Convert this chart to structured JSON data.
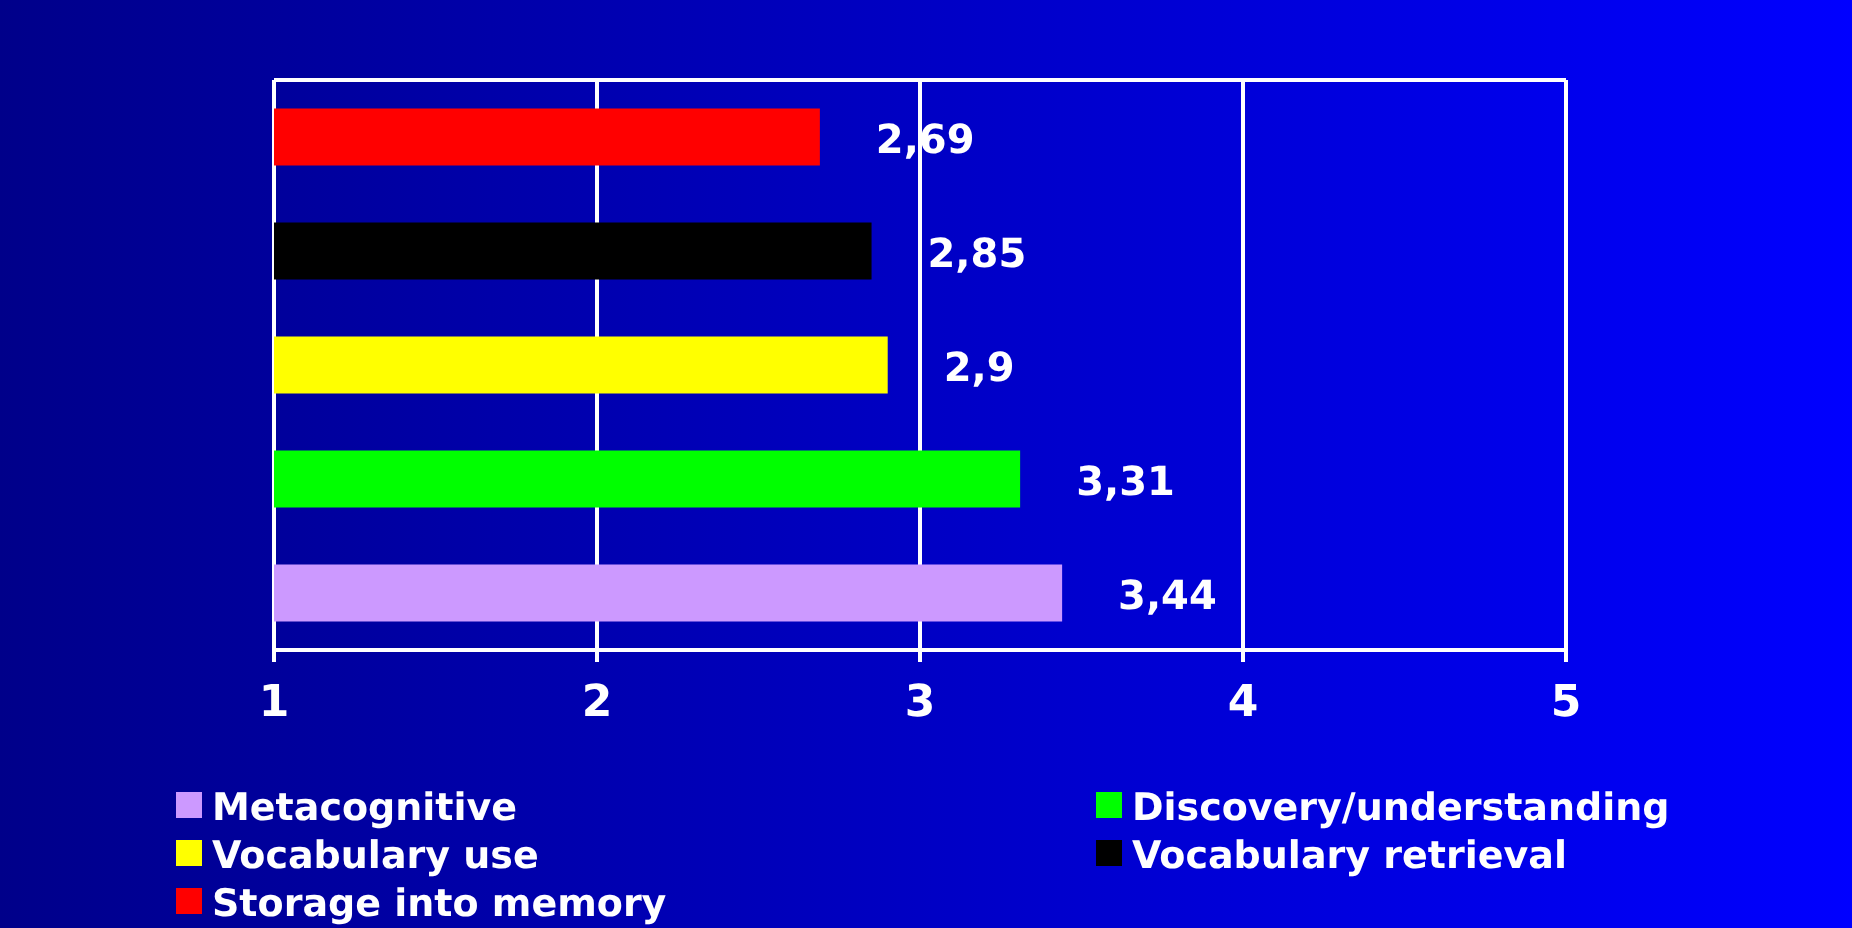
{
  "chart_data": {
    "type": "bar",
    "orientation": "horizontal",
    "categories": [
      null
    ],
    "series": [
      {
        "name": "Metacognitive",
        "color": "#cc99ff",
        "values": [
          3.44
        ],
        "value_labels": [
          "3,44"
        ]
      },
      {
        "name": "Discovery/understanding",
        "color": "#00ff00",
        "values": [
          3.31
        ],
        "value_labels": [
          "3,31"
        ]
      },
      {
        "name": "Vocabulary use",
        "color": "#ffff00",
        "values": [
          2.9
        ],
        "value_labels": [
          "2,9"
        ]
      },
      {
        "name": "Vocabulary retrieval",
        "color": "#000000",
        "values": [
          2.85
        ],
        "value_labels": [
          "2,85"
        ]
      },
      {
        "name": "Storage into memory",
        "color": "#ff0000",
        "values": [
          2.69
        ],
        "value_labels": [
          "2,69"
        ]
      }
    ],
    "xlim": [
      1,
      5
    ],
    "xticks": [
      1,
      2,
      3,
      4,
      5
    ],
    "grid": "x",
    "legend": "bottom"
  }
}
